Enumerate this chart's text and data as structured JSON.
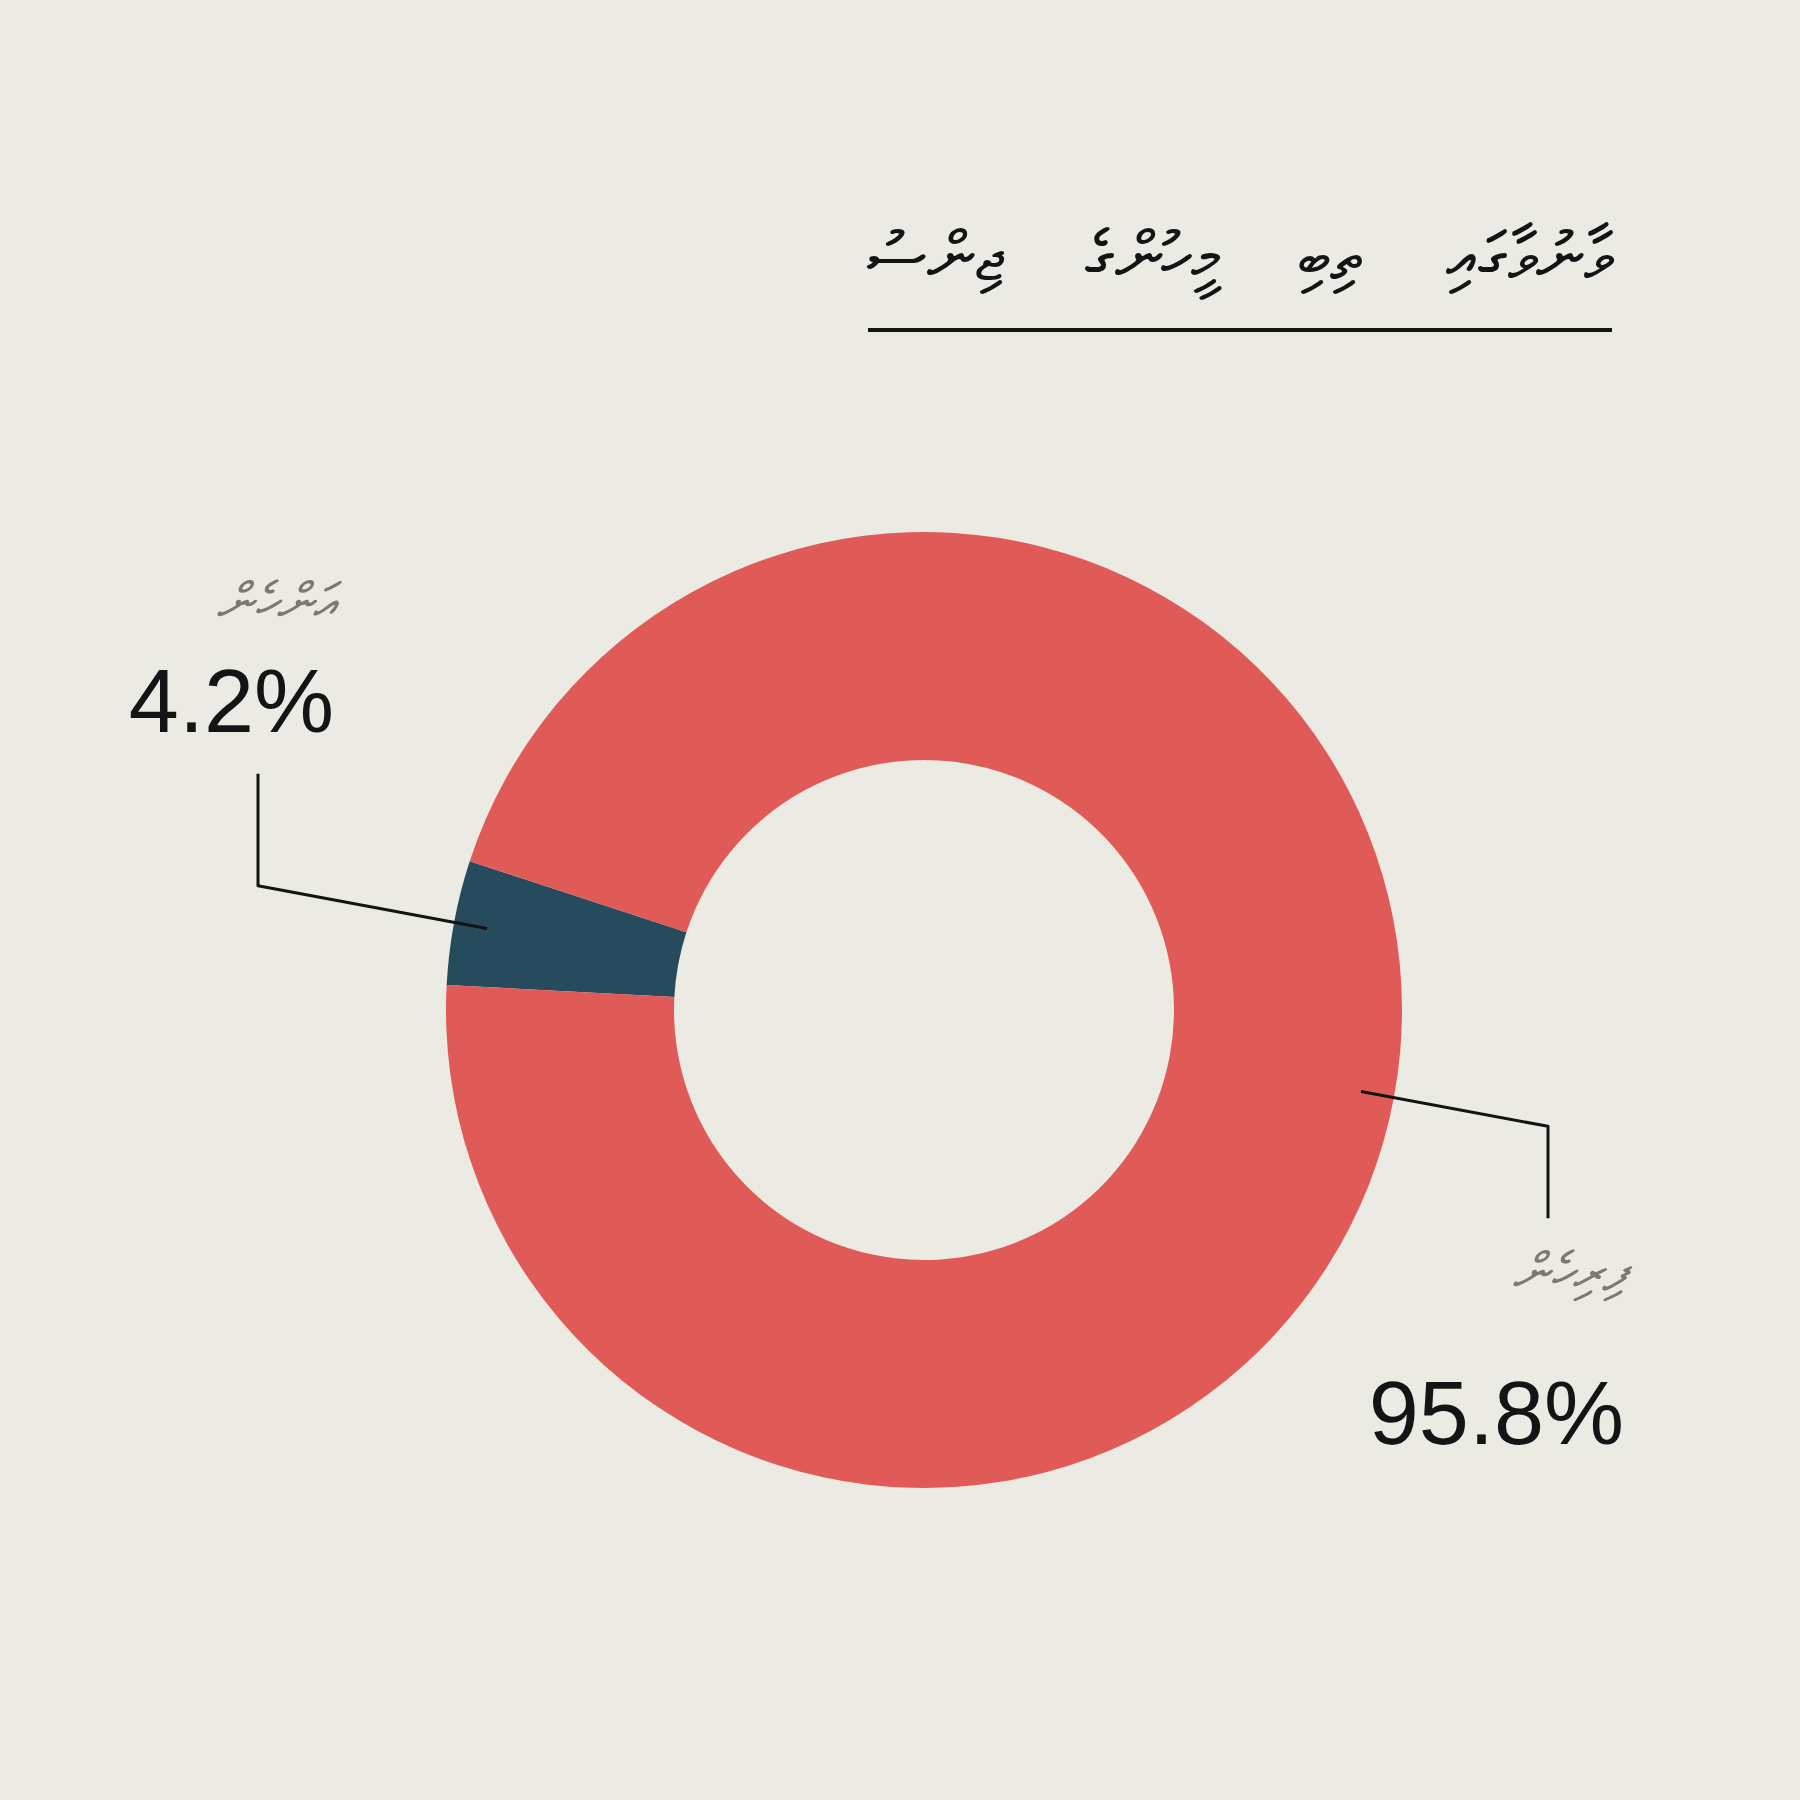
{
  "chart_data": {
    "type": "donut",
    "title": "ވާނުވާގައި ތިބި މީހުންގެ ޖިންސު",
    "categories": [
      "އަންހެން",
      "ފިރިހެން"
    ],
    "values": [
      4.2,
      95.8
    ],
    "colors": [
      "#264b5c",
      "#e05b57"
    ],
    "value_labels": [
      "4.2%",
      "95.8%"
    ]
  }
}
